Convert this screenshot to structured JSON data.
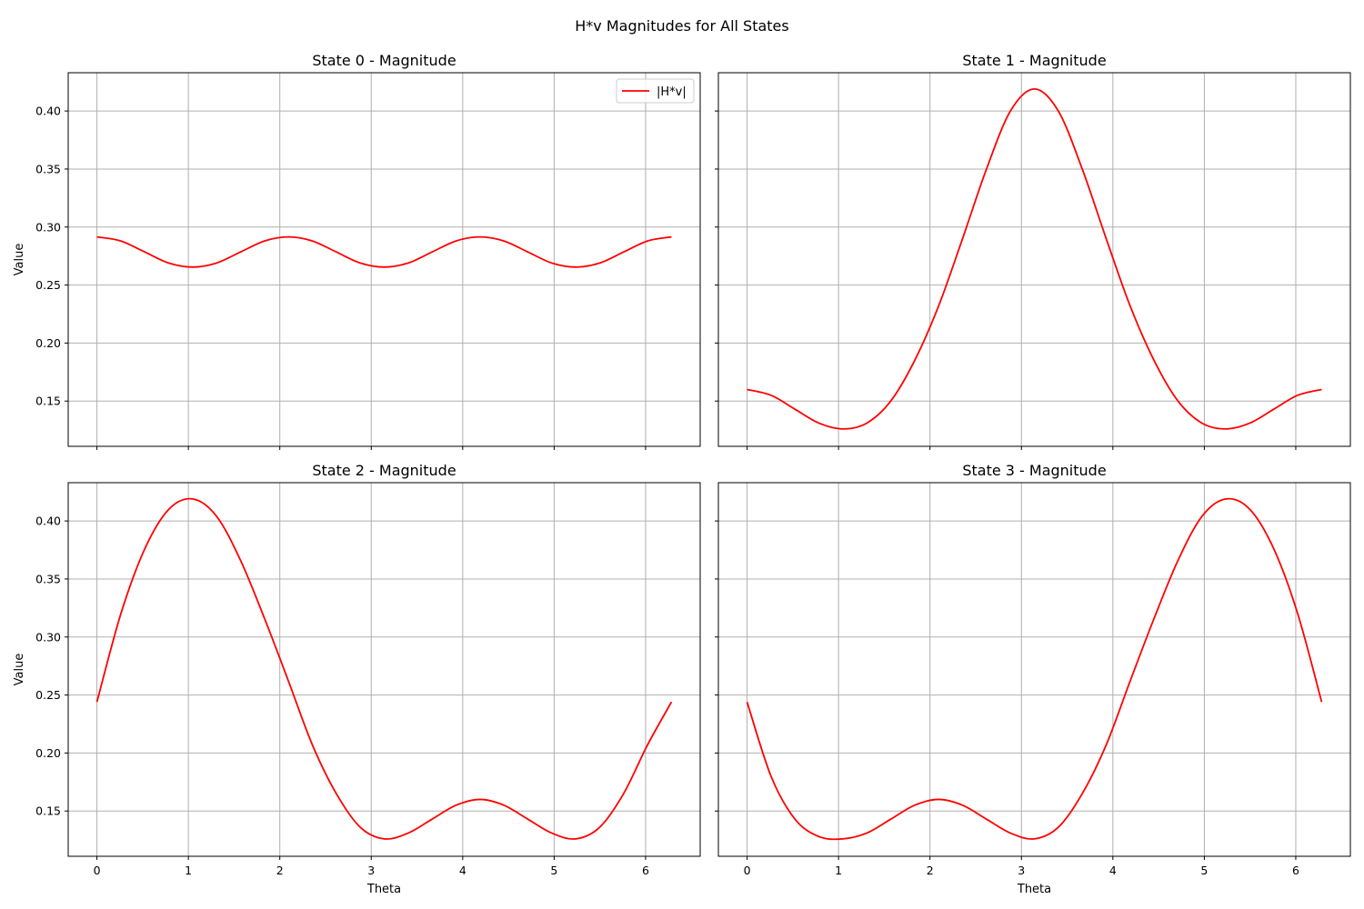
{
  "figure": {
    "suptitle": "H*v Magnitudes for All States"
  },
  "colors": {
    "line": "#ff0000",
    "grid": "#b0b0b0",
    "axes": "#000000",
    "legend_border": "#cccccc"
  },
  "chart_data": [
    {
      "type": "line",
      "title": "State 0 - Magnitude",
      "xlabel": "",
      "ylabel": "Value",
      "xlim": [
        -0.314,
        6.597
      ],
      "ylim": [
        0.111,
        0.433
      ],
      "xticks": [
        "0",
        "1",
        "2",
        "3",
        "4",
        "5",
        "6"
      ],
      "yticks": [
        "0.15",
        "0.20",
        "0.25",
        "0.30",
        "0.35",
        "0.40"
      ],
      "grid": true,
      "legend": "upper right",
      "series": [
        {
          "name": "|H*v|",
          "color": "#ff0000",
          "x": [
            0,
            0.2618,
            0.5236,
            0.7854,
            1.0472,
            1.309,
            1.5708,
            1.8326,
            2.0944,
            2.3562,
            2.618,
            2.8798,
            3.1416,
            3.4034,
            3.6652,
            3.927,
            4.1888,
            4.4506,
            4.7124,
            4.9742,
            5.236,
            5.4978,
            5.7596,
            6.0214,
            6.2832
          ],
          "y": [
            0.2915,
            0.288,
            0.2785,
            0.269,
            0.2655,
            0.269,
            0.2785,
            0.288,
            0.2915,
            0.288,
            0.2785,
            0.269,
            0.2655,
            0.269,
            0.2785,
            0.288,
            0.2915,
            0.288,
            0.2785,
            0.269,
            0.2655,
            0.269,
            0.2785,
            0.288,
            0.2915
          ]
        }
      ]
    },
    {
      "type": "line",
      "title": "State 1 - Magnitude",
      "xlabel": "",
      "ylabel": "",
      "xlim": [
        -0.314,
        6.597
      ],
      "ylim": [
        0.111,
        0.433
      ],
      "xticks": [
        "0",
        "1",
        "2",
        "3",
        "4",
        "5",
        "6"
      ],
      "yticks": [
        "0.15",
        "0.20",
        "0.25",
        "0.30",
        "0.35",
        "0.40"
      ],
      "grid": true,
      "series": [
        {
          "color": "#ff0000",
          "x": [
            0,
            0.2618,
            0.5236,
            0.7854,
            1.0472,
            1.309,
            1.5708,
            1.8326,
            2.0944,
            2.3562,
            2.618,
            2.8798,
            3.1416,
            3.4034,
            3.6652,
            3.927,
            4.1888,
            4.4506,
            4.7124,
            4.9742,
            5.236,
            5.4978,
            5.7596,
            6.0214,
            6.2832
          ],
          "y": [
            0.16,
            0.155,
            0.143,
            0.131,
            0.126,
            0.131,
            0.15,
            0.185,
            0.232,
            0.29,
            0.35,
            0.4,
            0.419,
            0.4,
            0.35,
            0.29,
            0.232,
            0.185,
            0.15,
            0.131,
            0.126,
            0.131,
            0.143,
            0.155,
            0.16
          ]
        }
      ]
    },
    {
      "type": "line",
      "title": "State 2 - Magnitude",
      "xlabel": "Theta",
      "ylabel": "Value",
      "xlim": [
        -0.314,
        6.597
      ],
      "ylim": [
        0.111,
        0.433
      ],
      "xticks": [
        "0",
        "1",
        "2",
        "3",
        "4",
        "5",
        "6"
      ],
      "yticks": [
        "0.15",
        "0.20",
        "0.25",
        "0.30",
        "0.35",
        "0.40"
      ],
      "grid": true,
      "series": [
        {
          "color": "#ff0000",
          "x": [
            0,
            0.2618,
            0.5236,
            0.7854,
            1.0472,
            1.309,
            1.5708,
            1.8326,
            2.0944,
            2.3562,
            2.618,
            2.8798,
            3.1416,
            3.4034,
            3.6652,
            3.927,
            4.1888,
            4.4506,
            4.7124,
            4.9742,
            5.236,
            5.4978,
            5.7596,
            6.0214,
            6.2832
          ],
          "y": [
            0.244,
            0.32,
            0.376,
            0.41,
            0.419,
            0.404,
            0.366,
            0.316,
            0.262,
            0.207,
            0.165,
            0.136,
            0.126,
            0.131,
            0.143,
            0.155,
            0.16,
            0.155,
            0.143,
            0.131,
            0.126,
            0.136,
            0.165,
            0.207,
            0.244
          ]
        }
      ]
    },
    {
      "type": "line",
      "title": "State 3 - Magnitude",
      "xlabel": "Theta",
      "ylabel": "",
      "xlim": [
        -0.314,
        6.597
      ],
      "ylim": [
        0.111,
        0.433
      ],
      "xticks": [
        "0",
        "1",
        "2",
        "3",
        "4",
        "5",
        "6"
      ],
      "yticks": [
        "0.15",
        "0.20",
        "0.25",
        "0.30",
        "0.35",
        "0.40"
      ],
      "grid": true,
      "series": [
        {
          "color": "#ff0000",
          "x": [
            0,
            0.2618,
            0.5236,
            0.7854,
            1.0472,
            1.309,
            1.5708,
            1.8326,
            2.0944,
            2.3562,
            2.618,
            2.8798,
            3.1416,
            3.4034,
            3.6652,
            3.927,
            4.1888,
            4.4506,
            4.7124,
            4.9742,
            5.236,
            5.4978,
            5.7596,
            6.0214,
            6.2832
          ],
          "y": [
            0.244,
            0.18,
            0.143,
            0.128,
            0.126,
            0.131,
            0.143,
            0.155,
            0.16,
            0.155,
            0.143,
            0.131,
            0.126,
            0.136,
            0.165,
            0.207,
            0.262,
            0.316,
            0.366,
            0.404,
            0.419,
            0.41,
            0.376,
            0.32,
            0.244
          ]
        }
      ]
    }
  ]
}
